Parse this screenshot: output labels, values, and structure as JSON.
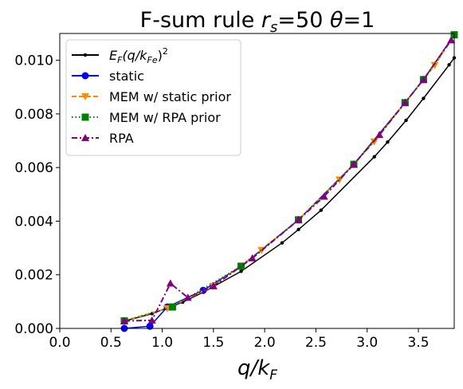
{
  "chart_data": {
    "type": "line",
    "title": "F-sum rule $r_s$=50 $\\theta$=1",
    "title_parts": {
      "prefix": "F-sum rule ",
      "rs_sym": "r",
      "rs_sub": "s",
      "rs_val": "=50 ",
      "theta_sym": "θ",
      "theta_val": "=1"
    },
    "xlabel": "$q/k_F$",
    "xlabel_parts": {
      "main": "q/k",
      "sub": "F"
    },
    "ylabel": "",
    "xlim": [
      0.0,
      3.85
    ],
    "ylim": [
      0.0,
      0.011
    ],
    "xticks": [
      "0.0",
      "0.5",
      "1.0",
      "1.5",
      "2.0",
      "2.5",
      "3.0",
      "3.5"
    ],
    "yticks": [
      "0.000",
      "0.002",
      "0.004",
      "0.006",
      "0.008",
      "0.010"
    ],
    "grid": false,
    "legend_position": "upper-left",
    "series": [
      {
        "name": "$E_F(q/k_{Fe})^2$",
        "legend_parts": {
          "E": "E",
          "Esub": "F",
          "mid": "(q/k",
          "sub": "Fe",
          "close": ")",
          "sup": "2"
        },
        "color": "#000000",
        "linestyle": "solid",
        "marker": "dot",
        "x": [
          0.63,
          0.9,
          1.2,
          1.4,
          1.77,
          2.17,
          2.33,
          2.55,
          3.07,
          3.2,
          3.38,
          3.55,
          3.8,
          3.85
        ],
        "y": [
          0.00027,
          0.00055,
          0.00098,
          0.00135,
          0.00213,
          0.00319,
          0.00369,
          0.00441,
          0.0064,
          0.00695,
          0.00776,
          0.00858,
          0.00983,
          0.01009
        ]
      },
      {
        "name": "static",
        "color": "#0000ff",
        "linestyle": "solid",
        "marker": "circle",
        "x": [
          0.63,
          0.88,
          1.05,
          1.4,
          1.77,
          2.33,
          2.87,
          3.37,
          3.55,
          3.85
        ],
        "y": [
          0.0,
          8e-05,
          0.0008,
          0.00142,
          0.00232,
          0.00405,
          0.00612,
          0.00842,
          0.00928,
          0.01095
        ]
      },
      {
        "name": "MEM w/ static prior",
        "color": "#ff8c00",
        "linestyle": "dashed",
        "marker": "triangle-down",
        "x": [
          0.63,
          1.05,
          1.5,
          1.97,
          2.33,
          2.73,
          3.07,
          3.37,
          3.66,
          3.85
        ],
        "y": [
          0.00028,
          0.00075,
          0.00158,
          0.00292,
          0.00405,
          0.00555,
          0.00697,
          0.00842,
          0.00982,
          0.01095
        ]
      },
      {
        "name": "MEM w/ RPA prior",
        "color": "#008000",
        "linestyle": "dotted",
        "marker": "square",
        "x": [
          0.63,
          1.1,
          1.77,
          2.33,
          2.87,
          3.37,
          3.55,
          3.85
        ],
        "y": [
          0.00028,
          0.0008,
          0.00232,
          0.00405,
          0.00612,
          0.00842,
          0.00928,
          0.01095
        ]
      },
      {
        "name": "RPA",
        "color": "#800080",
        "linestyle": "dashdot",
        "marker": "triangle-up",
        "x": [
          0.63,
          0.9,
          1.08,
          1.25,
          1.5,
          1.88,
          2.33,
          2.58,
          2.87,
          3.12,
          3.37,
          3.55,
          3.82
        ],
        "y": [
          0.00028,
          0.0003,
          0.00168,
          0.00115,
          0.00158,
          0.00262,
          0.00405,
          0.00492,
          0.00612,
          0.00722,
          0.00842,
          0.00928,
          0.01075
        ]
      }
    ]
  }
}
